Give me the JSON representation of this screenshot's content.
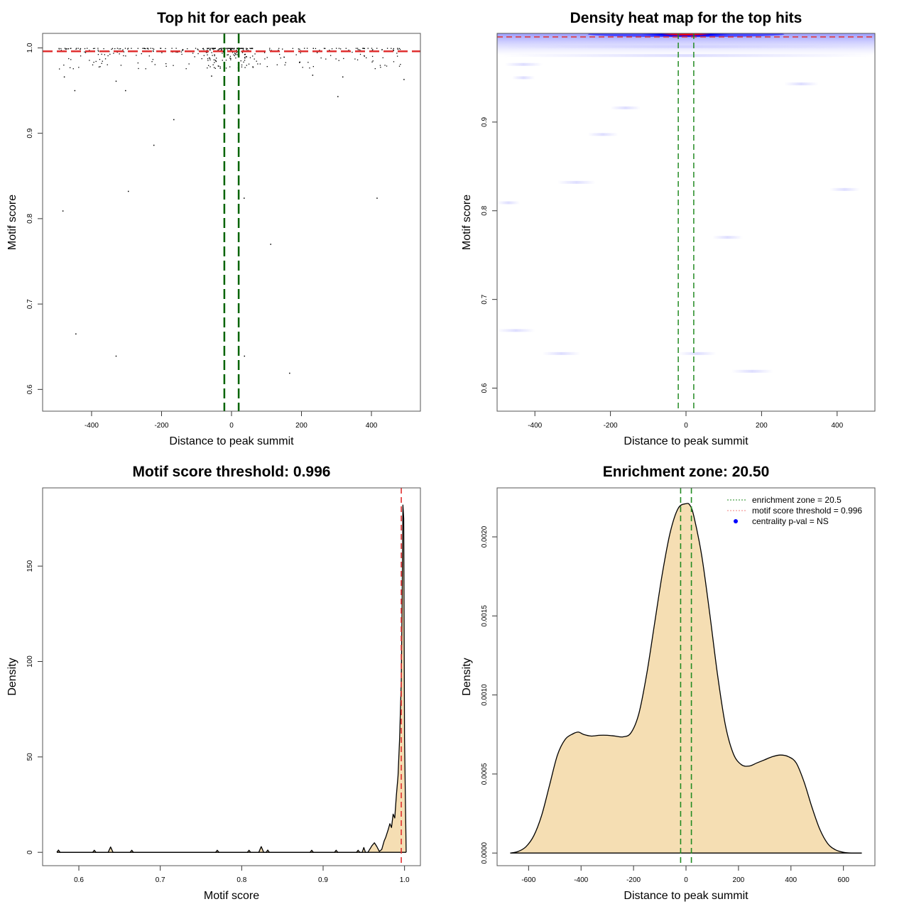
{
  "chart_data": [
    {
      "id": "top-hit",
      "type": "scatter",
      "title": "Top hit for each peak",
      "xlabel": "Distance to peak summit",
      "ylabel": "Motif score",
      "xlim": [
        -540,
        540
      ],
      "ylim": [
        0.5745,
        1.017
      ],
      "xticks": [
        -400,
        -200,
        0,
        200,
        400
      ],
      "xtick_labels": [
        "-400",
        "-200",
        "0",
        "200",
        "400"
      ],
      "yticks": [
        0.6,
        0.7,
        0.8,
        0.9,
        1.0
      ],
      "ytick_labels": [
        "0.6",
        "0.7",
        "0.8",
        "0.9",
        "1.0"
      ],
      "grid": false,
      "hlines": [
        {
          "value": 0.996,
          "color": "#e03030",
          "style": "dashed"
        }
      ],
      "vlines": [
        {
          "value": -20.5,
          "color": "#006400",
          "style": "dashed"
        },
        {
          "value": 20.5,
          "color": "#006400",
          "style": "dashed"
        }
      ],
      "outlier_points": [
        {
          "x": -482,
          "y": 0.809
        },
        {
          "x": -445,
          "y": 0.665
        },
        {
          "x": -330,
          "y": 0.639
        },
        {
          "x": -295,
          "y": 0.832
        },
        {
          "x": -222,
          "y": 0.886
        },
        {
          "x": -165,
          "y": 0.916
        },
        {
          "x": -448,
          "y": 0.95
        },
        {
          "x": -330,
          "y": 0.961
        },
        {
          "x": -303,
          "y": 0.95
        },
        {
          "x": 36,
          "y": 0.824
        },
        {
          "x": 37,
          "y": 0.639
        },
        {
          "x": 112,
          "y": 0.77
        },
        {
          "x": 166,
          "y": 0.619
        },
        {
          "x": 304,
          "y": 0.943
        },
        {
          "x": 408,
          "y": 0.574
        },
        {
          "x": 416,
          "y": 0.824
        },
        {
          "x": 493,
          "y": 0.963
        },
        {
          "x": -478,
          "y": 0.966
        },
        {
          "x": 318,
          "y": 0.966
        },
        {
          "x": -57,
          "y": 0.967
        },
        {
          "x": 232,
          "y": 0.968
        }
      ],
      "dense_band": {
        "ymin": 0.975,
        "ymax": 0.9995,
        "xmin": -495,
        "xmax": 495
      }
    },
    {
      "id": "heatmap",
      "type": "heatmap",
      "title": "Density heat map for the top hits",
      "xlabel": "Distance to peak summit",
      "ylabel": "Motif score",
      "xlim": [
        -500,
        500
      ],
      "ylim": [
        0.574,
        1.0
      ],
      "xticks": [
        -400,
        -200,
        0,
        200,
        400
      ],
      "xtick_labels": [
        "-400",
        "-200",
        "0",
        "200",
        "400"
      ],
      "yticks": [
        0.6,
        0.7,
        0.8,
        0.9
      ],
      "ytick_labels": [
        "0.6",
        "0.7",
        "0.8",
        "0.9"
      ],
      "grid": false,
      "hlines": [
        {
          "value": 0.996,
          "color": "#e03030",
          "style": "dashed"
        }
      ],
      "vlines": [
        {
          "value": -20.5,
          "color": "#228b22",
          "style": "dashed"
        },
        {
          "value": 20.5,
          "color": "#228b22",
          "style": "dashed"
        }
      ],
      "hotspot": {
        "x": 0,
        "y": 0.999,
        "color_high": "#ff0000",
        "color_mid": "#0000ff"
      },
      "faint_bands": [
        {
          "y": 0.985,
          "xmin": -500,
          "xmax": 500
        },
        {
          "y": 0.975,
          "xmin": -500,
          "xmax": 500
        },
        {
          "y": 0.965,
          "xmin": -480,
          "xmax": -380
        },
        {
          "y": 0.95,
          "xmin": -460,
          "xmax": -400
        },
        {
          "y": 0.943,
          "xmin": 260,
          "xmax": 350
        },
        {
          "y": 0.916,
          "xmin": -200,
          "xmax": -120
        },
        {
          "y": 0.886,
          "xmin": -260,
          "xmax": -180
        },
        {
          "y": 0.832,
          "xmin": -340,
          "xmax": -240
        },
        {
          "y": 0.824,
          "xmin": 380,
          "xmax": 460
        },
        {
          "y": 0.809,
          "xmin": -500,
          "xmax": -440
        },
        {
          "y": 0.77,
          "xmin": 70,
          "xmax": 150
        },
        {
          "y": 0.665,
          "xmin": -500,
          "xmax": -400
        },
        {
          "y": 0.639,
          "xmin": -380,
          "xmax": -280
        },
        {
          "y": 0.639,
          "xmin": -20,
          "xmax": 80
        },
        {
          "y": 0.619,
          "xmin": 120,
          "xmax": 230
        }
      ]
    },
    {
      "id": "score-density",
      "type": "area",
      "title": "Motif score threshold: 0.996",
      "xlabel": "Motif score",
      "ylabel": "Density",
      "xlim": [
        0.5555,
        1.0195
      ],
      "ylim": [
        -7,
        191
      ],
      "xticks": [
        0.6,
        0.7,
        0.8,
        0.9,
        1.0
      ],
      "xtick_labels": [
        "0.6",
        "0.7",
        "0.8",
        "0.9",
        "1.0"
      ],
      "yticks": [
        0,
        50,
        100,
        150
      ],
      "ytick_labels": [
        "0",
        "50",
        "100",
        "150"
      ],
      "grid": false,
      "fill_color": "#f5deb3",
      "vlines": [
        {
          "value": 0.996,
          "color": "#e03030",
          "style": "dashed"
        }
      ],
      "x": [
        0.573,
        0.575,
        0.577,
        0.617,
        0.619,
        0.621,
        0.636,
        0.639,
        0.642,
        0.663,
        0.665,
        0.667,
        0.768,
        0.77,
        0.772,
        0.807,
        0.809,
        0.811,
        0.821,
        0.824,
        0.827,
        0.83,
        0.832,
        0.834,
        0.884,
        0.886,
        0.888,
        0.914,
        0.916,
        0.918,
        0.941,
        0.943,
        0.945,
        0.948,
        0.95,
        0.952,
        0.955,
        0.96,
        0.963,
        0.966,
        0.969,
        0.972,
        0.975,
        0.977,
        0.98,
        0.982,
        0.984,
        0.986,
        0.988,
        0.99,
        0.992,
        0.994,
        0.996,
        0.997,
        0.998,
        0.999,
        1.0,
        1.002
      ],
      "y": [
        0,
        1.2,
        0,
        0,
        1.1,
        0,
        0,
        2.8,
        0,
        0,
        1.1,
        0,
        0,
        1.1,
        0,
        0,
        1.1,
        0,
        0,
        3.0,
        0,
        0,
        1.2,
        0,
        0,
        1.1,
        0,
        0,
        1.1,
        0,
        0,
        1.1,
        0,
        0,
        2.5,
        0,
        0,
        3.5,
        5.0,
        3.0,
        0.5,
        1.5,
        6.0,
        8.0,
        12.0,
        15.0,
        13.0,
        20.0,
        18.0,
        30.0,
        40.0,
        60.0,
        90.0,
        130.0,
        182.0,
        175.0,
        60.0,
        0
      ]
    },
    {
      "id": "distance-density",
      "type": "area",
      "title": "Enrichment zone: 20.50",
      "xlabel": "Distance to peak summit",
      "ylabel": "Density",
      "xlim": [
        -720,
        720
      ],
      "ylim": [
        -8e-05,
        0.00231
      ],
      "xticks": [
        -600,
        -400,
        -200,
        0,
        200,
        400,
        600
      ],
      "xtick_labels": [
        "-600",
        "-400",
        "-200",
        "0",
        "200",
        "400",
        "600"
      ],
      "yticks": [
        0.0,
        0.0005,
        0.001,
        0.0015,
        0.002
      ],
      "ytick_labels": [
        "0.0000",
        "0.0005",
        "0.0010",
        "0.0015",
        "0.0020"
      ],
      "grid": false,
      "fill_color": "#f5deb3",
      "vlines": [
        {
          "value": -20.5,
          "color": "#228b22",
          "style": "dashed"
        },
        {
          "value": 20.5,
          "color": "#228b22",
          "style": "dashed"
        }
      ],
      "x": [
        -670,
        -640,
        -610,
        -580,
        -550,
        -520,
        -490,
        -460,
        -430,
        -410,
        -390,
        -360,
        -330,
        -300,
        -270,
        -240,
        -210,
        -180,
        -150,
        -120,
        -90,
        -60,
        -30,
        0,
        15,
        30,
        60,
        90,
        120,
        150,
        180,
        210,
        240,
        270,
        300,
        330,
        360,
        390,
        420,
        450,
        480,
        510,
        540,
        570,
        600,
        630,
        670
      ],
      "y": [
        0.0,
        1e-05,
        4e-05,
        0.00011,
        0.00024,
        0.00043,
        0.00062,
        0.00072,
        0.000755,
        0.000765,
        0.00075,
        0.00074,
        0.000745,
        0.000745,
        0.00074,
        0.000735,
        0.00076,
        0.00088,
        0.00113,
        0.00145,
        0.00177,
        0.00203,
        0.00218,
        0.00221,
        0.0022,
        0.00213,
        0.00188,
        0.00152,
        0.00113,
        0.00081,
        0.00063,
        0.00056,
        0.00055,
        0.00057,
        0.00059,
        0.00061,
        0.00062,
        0.00061,
        0.00057,
        0.00045,
        0.00029,
        0.00015,
        6e-05,
        2e-05,
        5e-06,
        0.0,
        0.0
      ]
    }
  ],
  "legend": {
    "placement": "top-right",
    "items": [
      {
        "label": "enrichment zone = 20.5",
        "color": "#228b22",
        "marker": "dotted-line"
      },
      {
        "label": "motif score threshold = 0.996",
        "color": "#f08080",
        "marker": "dotted-line"
      },
      {
        "label": "centrality p-val = NS",
        "color": "#0000ff",
        "marker": "dot"
      }
    ]
  }
}
